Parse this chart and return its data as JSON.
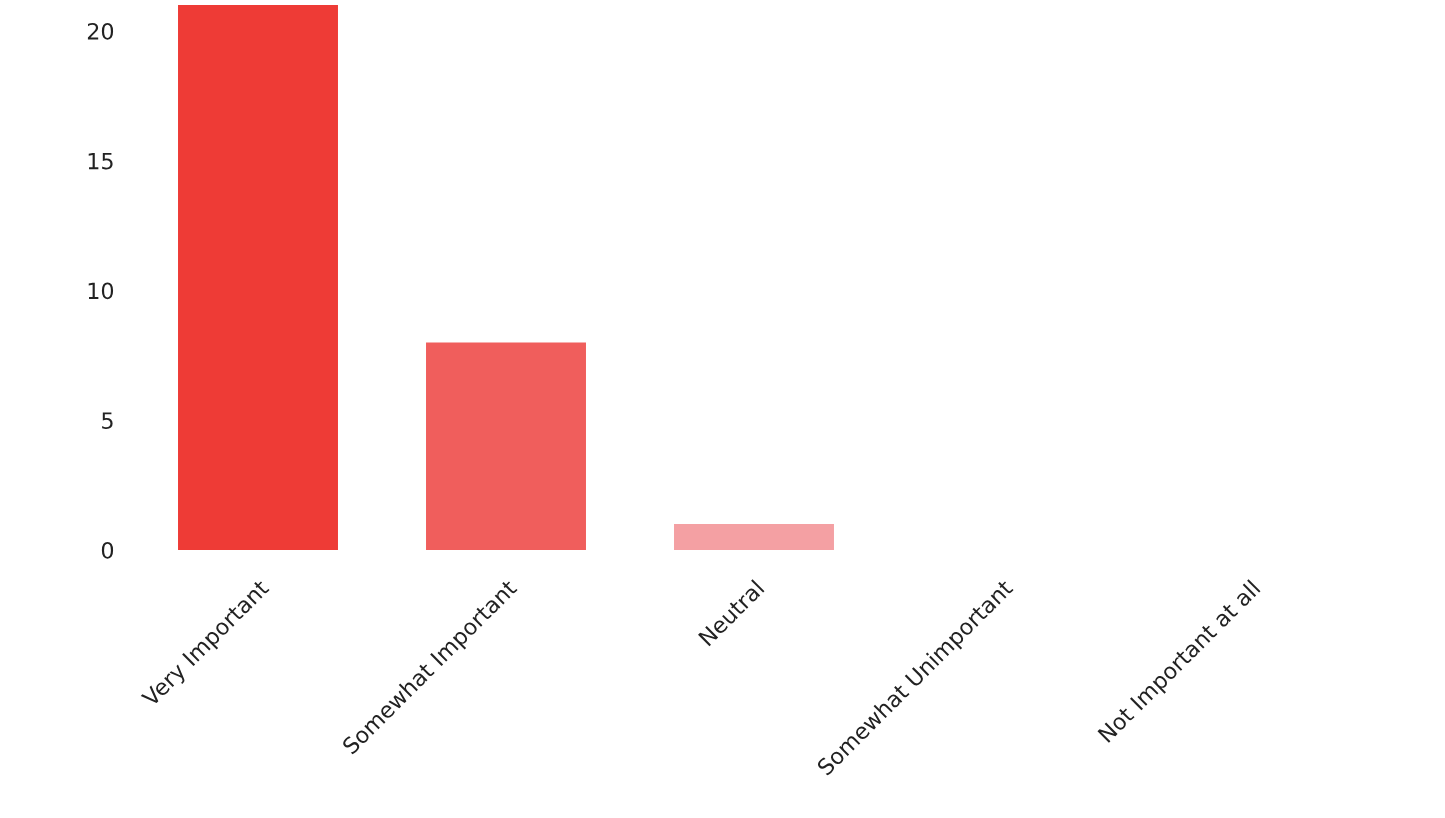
{
  "chart_data": {
    "type": "bar",
    "categories": [
      "Very Important",
      "Somewhat Important",
      "Neutral",
      "Somewhat Unimportant",
      "Not Important at all"
    ],
    "values": [
      21,
      8,
      1,
      0,
      0
    ],
    "colors": [
      "#ee3b36",
      "#f05e5c",
      "#f4a0a3",
      "#f4a0a3",
      "#f4a0a3"
    ],
    "ylim": [
      0,
      21
    ],
    "yticks": [
      0,
      5,
      10,
      15,
      20
    ],
    "grid": false,
    "legend": false
  }
}
